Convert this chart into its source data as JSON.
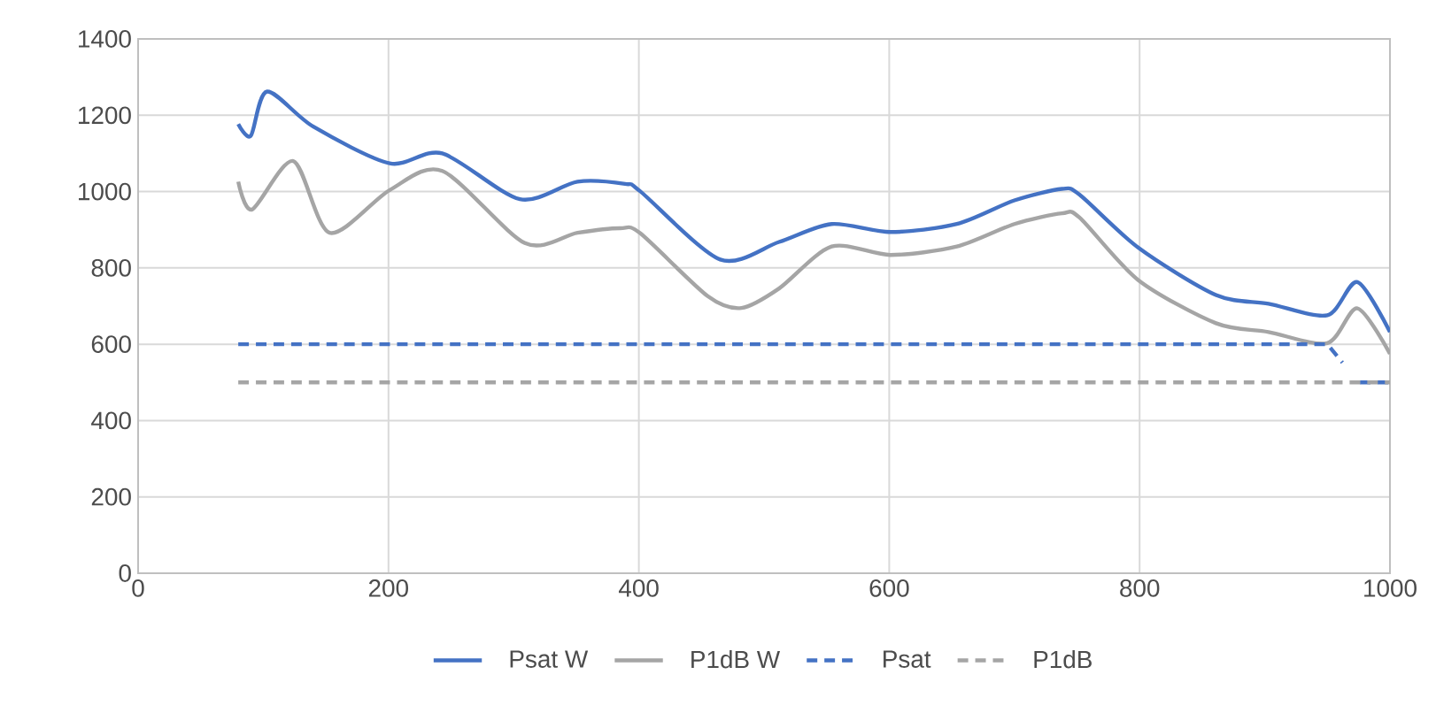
{
  "chart_data": {
    "type": "line",
    "xlim": [
      0,
      1000
    ],
    "xticks": [
      0,
      200,
      400,
      600,
      800,
      1000
    ],
    "ylim": [
      0,
      1400
    ],
    "yticks": [
      0,
      200,
      400,
      600,
      800,
      1000,
      1200,
      1400
    ],
    "grid": true,
    "legend": "bottom",
    "marker": "none",
    "series": [
      {
        "name": "Psat  W",
        "color": "#4472c4",
        "line_style": "solid",
        "x": [
          80,
          90,
          103,
          140,
          201,
          243,
          305,
          351,
          389,
          401,
          465,
          512,
          554,
          601,
          654,
          700,
          738,
          752,
          799,
          861,
          903,
          950,
          974,
          1000
        ],
        "values": [
          1177,
          1146,
          1262,
          1170,
          1074,
          1100,
          980,
          1026,
          1020,
          1001,
          822,
          868,
          915,
          894,
          915,
          977,
          1007,
          992,
          853,
          729,
          706,
          676,
          763,
          632
        ]
      },
      {
        "name": "P1dB  W",
        "color": "#a5a5a5",
        "line_style": "solid",
        "x": [
          80,
          91,
          124,
          153,
          201,
          243,
          309,
          351,
          385,
          401,
          455,
          482,
          512,
          554,
          601,
          654,
          700,
          738,
          752,
          799,
          861,
          903,
          950,
          974,
          1000
        ],
        "values": [
          1026,
          953,
          1080,
          892,
          1004,
          1054,
          865,
          892,
          904,
          891,
          726,
          695,
          746,
          856,
          834,
          856,
          915,
          943,
          932,
          768,
          655,
          632,
          603,
          694,
          575
        ]
      },
      {
        "name": "Psat",
        "color": "#4472c4",
        "line_style": "dashed",
        "x": [
          80,
          950,
          962,
          null,
          976,
          1000
        ],
        "values": [
          600,
          600,
          552,
          null,
          500,
          500
        ]
      },
      {
        "name": "P1dB",
        "color": "#a5a5a5",
        "line_style": "dashed",
        "x": [
          80,
          1000
        ],
        "values": [
          500,
          500
        ]
      }
    ]
  }
}
